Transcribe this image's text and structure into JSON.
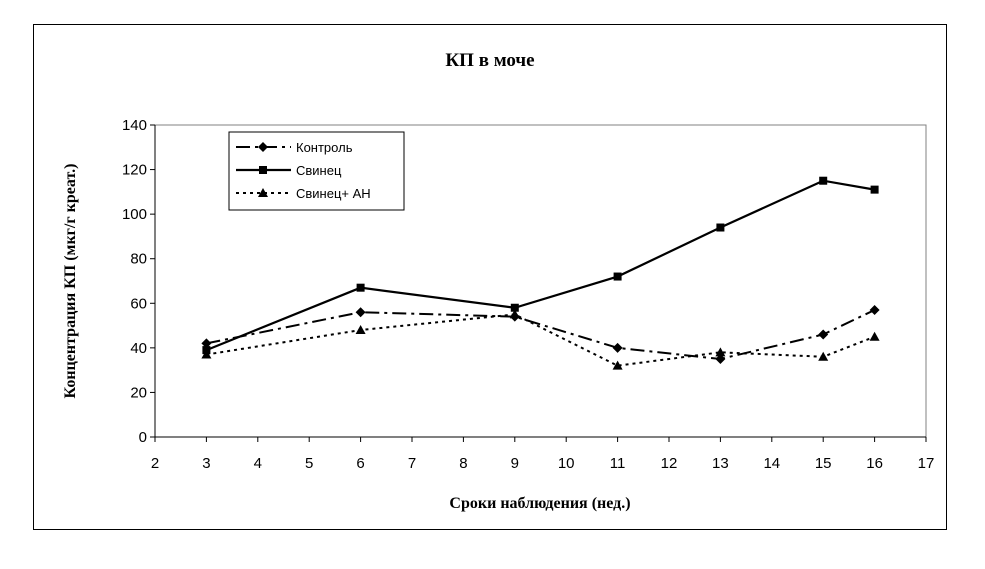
{
  "chart_data": {
    "type": "line",
    "title": "КП в моче",
    "xlabel": "Сроки наблюдения (нед.)",
    "ylabel": "Концентрация КП (мкг/г креат.)",
    "xlim": [
      2,
      17
    ],
    "ylim": [
      0,
      140
    ],
    "xticks": [
      2,
      3,
      4,
      5,
      6,
      7,
      8,
      9,
      10,
      11,
      12,
      13,
      14,
      15,
      16,
      17
    ],
    "yticks": [
      0,
      20,
      40,
      60,
      80,
      100,
      120,
      140
    ],
    "grid": false,
    "legend_position": "top-left",
    "x": [
      3,
      6,
      9,
      11,
      13,
      15,
      16
    ],
    "series": [
      {
        "name": "Контроль",
        "values": [
          42,
          56,
          54,
          40,
          35,
          46,
          57
        ],
        "marker": "diamond",
        "line_style": "dash-dot",
        "color": "#000000"
      },
      {
        "name": "Свинец",
        "values": [
          39,
          67,
          58,
          72,
          94,
          115,
          111
        ],
        "marker": "square",
        "line_style": "solid",
        "color": "#000000"
      },
      {
        "name": "Свинец+ АН",
        "values": [
          37,
          48,
          55,
          32,
          38,
          36,
          45
        ],
        "marker": "triangle",
        "line_style": "dotted",
        "color": "#000000"
      }
    ]
  }
}
